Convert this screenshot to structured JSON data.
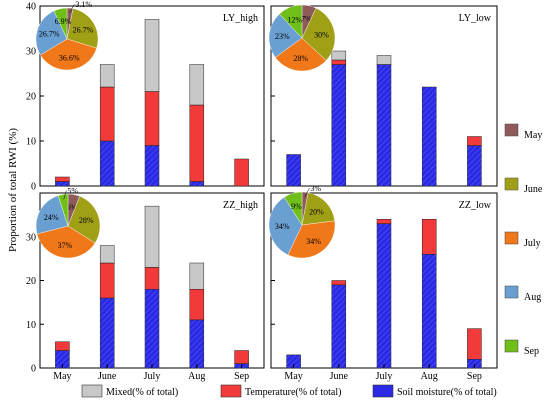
{
  "ylabel": "Proportion of total RWI (%)",
  "colors": {
    "mixed": "#c8c8c8",
    "temperature": "#f23a3a",
    "soil": "#2a2ae6",
    "may": "#8e5a5a",
    "june": "#a0a016",
    "july": "#f07818",
    "aug": "#6a9fd2",
    "sep": "#70bf18"
  },
  "legend": {
    "mixed": "Mixed(% of total)",
    "temperature": "Temperature(% of total)",
    "soil": "Soil moisture(% of total)"
  },
  "pie_legend": [
    "May",
    "June",
    "July",
    "Aug",
    "Sep"
  ],
  "chart_data": [
    {
      "type": "bar",
      "title": "LY_high",
      "categories": [
        "May",
        "June",
        "July",
        "Aug",
        "Sep"
      ],
      "series": [
        {
          "name": "Soil moisture(% of total)",
          "values": [
            1,
            10,
            9,
            1,
            0
          ]
        },
        {
          "name": "Temperature(% of total)",
          "values": [
            1,
            12,
            12,
            17,
            6
          ]
        },
        {
          "name": "Mixed(% of total)",
          "values": [
            0,
            5,
            16,
            9,
            0
          ]
        }
      ],
      "ylim": [
        0,
        40
      ],
      "yticks": [
        0,
        10,
        20,
        30,
        40
      ],
      "pie": {
        "categories": [
          "May",
          "June",
          "July",
          "Aug",
          "Sep"
        ],
        "values": [
          3.1,
          26.7,
          36.6,
          26.7,
          6.9
        ],
        "labels": [
          "3.1%",
          "26.7%",
          "36.6%",
          "26.7%",
          "6.9%"
        ]
      }
    },
    {
      "type": "bar",
      "title": "LY_low",
      "categories": [
        "May",
        "June",
        "July",
        "Aug",
        "Sep"
      ],
      "series": [
        {
          "name": "Soil moisture(% of total)",
          "values": [
            7,
            27,
            27,
            22,
            9
          ]
        },
        {
          "name": "Temperature(% of total)",
          "values": [
            0,
            1,
            0,
            0,
            2
          ]
        },
        {
          "name": "Mixed(% of total)",
          "values": [
            0,
            2,
            2,
            0,
            0
          ]
        }
      ],
      "ylim": [
        0,
        40
      ],
      "yticks": [
        0,
        10,
        20,
        30,
        40
      ],
      "pie": {
        "categories": [
          "May",
          "June",
          "July",
          "Aug",
          "Sep"
        ],
        "values": [
          7,
          30,
          28,
          23,
          12
        ],
        "labels": [
          "7%",
          "30%",
          "28%",
          "23%",
          "12%"
        ]
      }
    },
    {
      "type": "bar",
      "title": "ZZ_high",
      "categories": [
        "May",
        "June",
        "July",
        "Aug",
        "Sep"
      ],
      "series": [
        {
          "name": "Soil moisture(% of total)",
          "values": [
            4,
            16,
            18,
            11,
            1
          ]
        },
        {
          "name": "Temperature(% of total)",
          "values": [
            2,
            8,
            5,
            7,
            3
          ]
        },
        {
          "name": "Mixed(% of total)",
          "values": [
            0,
            4,
            14,
            6,
            0
          ]
        }
      ],
      "ylim": [
        0,
        40
      ],
      "yticks": [
        0,
        10,
        20,
        30
      ],
      "pie": {
        "categories": [
          "May",
          "June",
          "July",
          "Aug",
          "Sep"
        ],
        "values": [
          6,
          28,
          37,
          24,
          5
        ],
        "labels": [
          "6%",
          "28%",
          "37%",
          "24%",
          "5%"
        ]
      }
    },
    {
      "type": "bar",
      "title": "ZZ_low",
      "categories": [
        "May",
        "June",
        "July",
        "Aug",
        "Sep"
      ],
      "series": [
        {
          "name": "Soil moisture(% of total)",
          "values": [
            3,
            19,
            33,
            26,
            2
          ]
        },
        {
          "name": "Temperature(% of total)",
          "values": [
            0,
            1,
            1,
            8,
            7
          ]
        },
        {
          "name": "Mixed(% of total)",
          "values": [
            0,
            0,
            0,
            0,
            0
          ]
        }
      ],
      "ylim": [
        0,
        40
      ],
      "yticks": [
        0,
        10,
        20,
        30
      ],
      "pie": {
        "categories": [
          "May",
          "June",
          "July",
          "Aug",
          "Sep"
        ],
        "values": [
          3,
          20,
          34,
          34,
          9
        ],
        "labels": [
          "3%",
          "20%",
          "34%",
          "34%",
          "9%"
        ]
      }
    }
  ]
}
